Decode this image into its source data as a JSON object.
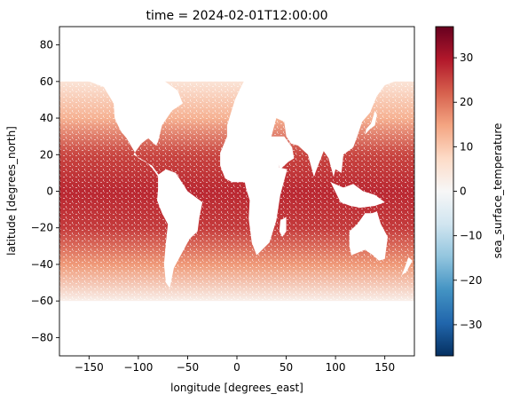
{
  "chart_data": {
    "type": "heatmap",
    "title": "time = 2024-02-01T12:00:00",
    "xlabel": "longitude [degrees_east]",
    "ylabel": "latitude [degrees_north]",
    "xlim": [
      -180,
      180
    ],
    "ylim": [
      -90,
      90
    ],
    "x_ticks": [
      -150,
      -100,
      -50,
      0,
      50,
      100,
      150
    ],
    "y_ticks": [
      -80,
      -60,
      -40,
      -20,
      0,
      20,
      40,
      60,
      80
    ],
    "colorbar": {
      "label": "sea_surface_temperature",
      "colormap": "RdBu_r",
      "range": [
        -37,
        37
      ],
      "ticks": [
        -30,
        -20,
        -10,
        0,
        10,
        20,
        30
      ],
      "colors": [
        "#053061",
        "#2166ac",
        "#4393c3",
        "#92c5de",
        "#d1e5f0",
        "#f7f7f7",
        "#fddbc7",
        "#f4a582",
        "#d6604d",
        "#b2182b",
        "#67001f"
      ]
    },
    "grid": false,
    "missing_color": "#ffffff",
    "sst_by_latitude": [
      {
        "lat": 60,
        "value": 5
      },
      {
        "lat": 40,
        "value": 13
      },
      {
        "lat": 20,
        "value": 25
      },
      {
        "lat": 0,
        "value": 28
      },
      {
        "lat": -20,
        "value": 26
      },
      {
        "lat": -40,
        "value": 16
      },
      {
        "lat": -60,
        "value": 2
      }
    ],
    "land": [
      {
        "name": "North America",
        "polygon": [
          [
            -168,
            66
          ],
          [
            -140,
            70
          ],
          [
            -95,
            72
          ],
          [
            -78,
            62
          ],
          [
            -60,
            55
          ],
          [
            -55,
            48
          ],
          [
            -66,
            44
          ],
          [
            -76,
            36
          ],
          [
            -80,
            27
          ],
          [
            -82,
            25
          ],
          [
            -90,
            29
          ],
          [
            -97,
            26
          ],
          [
            -105,
            20
          ],
          [
            -92,
            16
          ],
          [
            -85,
            12
          ],
          [
            -80,
            8
          ],
          [
            -78,
            8
          ],
          [
            -86,
            14
          ],
          [
            -100,
            18
          ],
          [
            -112,
            29
          ],
          [
            -118,
            33
          ],
          [
            -124,
            40
          ],
          [
            -125,
            48
          ],
          [
            -135,
            57
          ],
          [
            -150,
            60
          ],
          [
            -165,
            62
          ]
        ]
      },
      {
        "name": "South America",
        "polygon": [
          [
            -80,
            9
          ],
          [
            -72,
            12
          ],
          [
            -62,
            10
          ],
          [
            -50,
            0
          ],
          [
            -35,
            -6
          ],
          [
            -38,
            -14
          ],
          [
            -40,
            -22
          ],
          [
            -48,
            -26
          ],
          [
            -57,
            -35
          ],
          [
            -64,
            -42
          ],
          [
            -68,
            -53
          ],
          [
            -72,
            -50
          ],
          [
            -74,
            -40
          ],
          [
            -72,
            -28
          ],
          [
            -70,
            -18
          ],
          [
            -76,
            -12
          ],
          [
            -81,
            -5
          ],
          [
            -80,
            1
          ]
        ]
      },
      {
        "name": "Europe Africa",
        "polygon": [
          [
            -10,
            36
          ],
          [
            -6,
            43
          ],
          [
            -2,
            50
          ],
          [
            5,
            58
          ],
          [
            10,
            63
          ],
          [
            25,
            70
          ],
          [
            40,
            68
          ],
          [
            45,
            50
          ],
          [
            38,
            36
          ],
          [
            35,
            30
          ],
          [
            43,
            13
          ],
          [
            51,
            12
          ],
          [
            44,
            -2
          ],
          [
            40,
            -16
          ],
          [
            33,
            -28
          ],
          [
            20,
            -35
          ],
          [
            15,
            -28
          ],
          [
            12,
            -15
          ],
          [
            13,
            -5
          ],
          [
            9,
            2
          ],
          [
            8,
            5
          ],
          [
            -5,
            5
          ],
          [
            -12,
            7
          ],
          [
            -17,
            14
          ],
          [
            -17,
            21
          ],
          [
            -10,
            30
          ]
        ]
      },
      {
        "name": "Asia",
        "polygon": [
          [
            30,
            72
          ],
          [
            80,
            76
          ],
          [
            140,
            72
          ],
          [
            178,
            68
          ],
          [
            160,
            60
          ],
          [
            150,
            58
          ],
          [
            142,
            52
          ],
          [
            135,
            43
          ],
          [
            127,
            38
          ],
          [
            122,
            30
          ],
          [
            118,
            24
          ],
          [
            108,
            20
          ],
          [
            106,
            10
          ],
          [
            100,
            12
          ],
          [
            98,
            8
          ],
          [
            93,
            18
          ],
          [
            88,
            22
          ],
          [
            78,
            8
          ],
          [
            72,
            20
          ],
          [
            62,
            25
          ],
          [
            55,
            26
          ],
          [
            50,
            30
          ],
          [
            48,
            38
          ],
          [
            40,
            40
          ],
          [
            28,
            45
          ],
          [
            30,
            60
          ]
        ]
      },
      {
        "name": "Arabia",
        "polygon": [
          [
            35,
            30
          ],
          [
            48,
            30
          ],
          [
            56,
            24
          ],
          [
            58,
            18
          ],
          [
            52,
            16
          ],
          [
            44,
            12
          ],
          [
            38,
            20
          ]
        ]
      },
      {
        "name": "Australia",
        "polygon": [
          [
            114,
            -22
          ],
          [
            122,
            -18
          ],
          [
            130,
            -12
          ],
          [
            137,
            -12
          ],
          [
            142,
            -11
          ],
          [
            146,
            -18
          ],
          [
            153,
            -25
          ],
          [
            150,
            -37
          ],
          [
            144,
            -38
          ],
          [
            138,
            -35
          ],
          [
            130,
            -32
          ],
          [
            116,
            -35
          ],
          [
            114,
            -30
          ]
        ]
      },
      {
        "name": "Indonesia",
        "polygon": [
          [
            95,
            5
          ],
          [
            105,
            -6
          ],
          [
            115,
            -8
          ],
          [
            125,
            -9
          ],
          [
            140,
            -8
          ],
          [
            150,
            -6
          ],
          [
            140,
            -2
          ],
          [
            128,
            0
          ],
          [
            118,
            4
          ],
          [
            108,
            2
          ]
        ]
      },
      {
        "name": "Greenland",
        "polygon": [
          [
            -55,
            60
          ],
          [
            -42,
            60
          ],
          [
            -20,
            70
          ],
          [
            -18,
            82
          ],
          [
            -40,
            84
          ],
          [
            -60,
            82
          ],
          [
            -72,
            78
          ],
          [
            -60,
            70
          ]
        ]
      },
      {
        "name": "Madagascar",
        "polygon": [
          [
            44,
            -16
          ],
          [
            50,
            -14
          ],
          [
            50,
            -22
          ],
          [
            46,
            -25
          ],
          [
            43,
            -22
          ]
        ]
      },
      {
        "name": "Japan",
        "polygon": [
          [
            130,
            31
          ],
          [
            135,
            34
          ],
          [
            140,
            36
          ],
          [
            142,
            42
          ],
          [
            140,
            44
          ],
          [
            136,
            37
          ],
          [
            131,
            34
          ]
        ]
      },
      {
        "name": "New Zealand",
        "polygon": [
          [
            167,
            -46
          ],
          [
            172,
            -44
          ],
          [
            178,
            -38
          ],
          [
            174,
            -36
          ],
          [
            170,
            -42
          ]
        ]
      },
      {
        "name": "Antarctica",
        "polygon": [
          [
            -180,
            -90
          ],
          [
            180,
            -90
          ],
          [
            180,
            -72
          ],
          [
            120,
            -66
          ],
          [
            60,
            -68
          ],
          [
            0,
            -70
          ],
          [
            -60,
            -64
          ],
          [
            -100,
            -72
          ],
          [
            -150,
            -76
          ],
          [
            -180,
            -78
          ]
        ]
      }
    ]
  }
}
